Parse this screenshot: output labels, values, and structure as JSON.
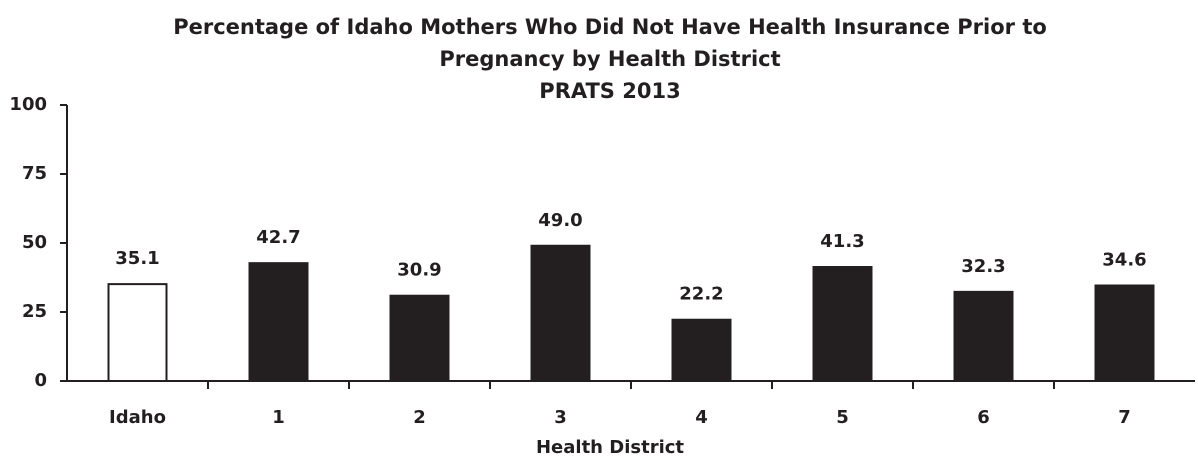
{
  "chart_data": {
    "type": "bar",
    "title": [
      "Percentage of Idaho Mothers Who Did Not Have Health Insurance Prior to",
      "Pregnancy by Health District"
    ],
    "subtitle": "PRATS 2013",
    "xlabel": "Health District",
    "categories": [
      "Idaho",
      "1",
      "2",
      "3",
      "4",
      "5",
      "6",
      "7"
    ],
    "values": [
      35.1,
      42.7,
      30.9,
      49.0,
      22.2,
      41.3,
      32.3,
      34.6
    ],
    "value_labels": [
      "35.1",
      "42.7",
      "30.9",
      "49.0",
      "22.2",
      "41.3",
      "32.3",
      "34.6"
    ],
    "colors": [
      "#ffffff",
      "#231f20",
      "#231f20",
      "#231f20",
      "#231f20",
      "#231f20",
      "#231f20",
      "#231f20"
    ],
    "ylim": [
      0,
      100
    ],
    "yticks": [
      0,
      25,
      50,
      75,
      100
    ],
    "grid": false
  }
}
